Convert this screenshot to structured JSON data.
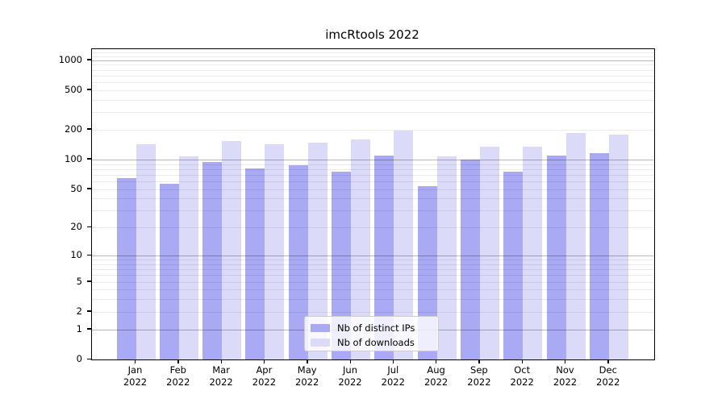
{
  "chart_data": {
    "type": "bar",
    "title": "imcRtools 2022",
    "categories": [
      "Jan",
      "Feb",
      "Mar",
      "Apr",
      "May",
      "Jun",
      "Jul",
      "Aug",
      "Sep",
      "Oct",
      "Nov",
      "Dec"
    ],
    "x_year_label": "2022",
    "series": [
      {
        "name": "Nb of distinct IPs",
        "color": "#a9a9f4",
        "values": [
          65,
          57,
          95,
          81,
          87,
          76,
          110,
          54,
          100,
          76,
          109,
          116
        ]
      },
      {
        "name": "Nb of downloads",
        "color": "#dbdbf9",
        "values": [
          143,
          108,
          155,
          142,
          148,
          160,
          196,
          107,
          136,
          136,
          186,
          180
        ]
      }
    ],
    "xlabel": "",
    "ylabel": "",
    "y_axis": {
      "scale": "log1p",
      "tick_values": [
        1000,
        500,
        200,
        100,
        50,
        20,
        10,
        5,
        2,
        1,
        0
      ],
      "major_gridlines": [
        1,
        10,
        100,
        1000
      ],
      "minor_gridlines": [
        2,
        3,
        4,
        5,
        6,
        7,
        8,
        9,
        20,
        30,
        40,
        50,
        60,
        70,
        80,
        90,
        200,
        300,
        400,
        500,
        600,
        700,
        800,
        900,
        1100,
        1200
      ],
      "ymin": 0,
      "ymax": 1290
    },
    "legend": {
      "position": "bottom-center",
      "entries": [
        "Nb of distinct IPs",
        "Nb of downloads"
      ]
    },
    "grid": "on"
  }
}
